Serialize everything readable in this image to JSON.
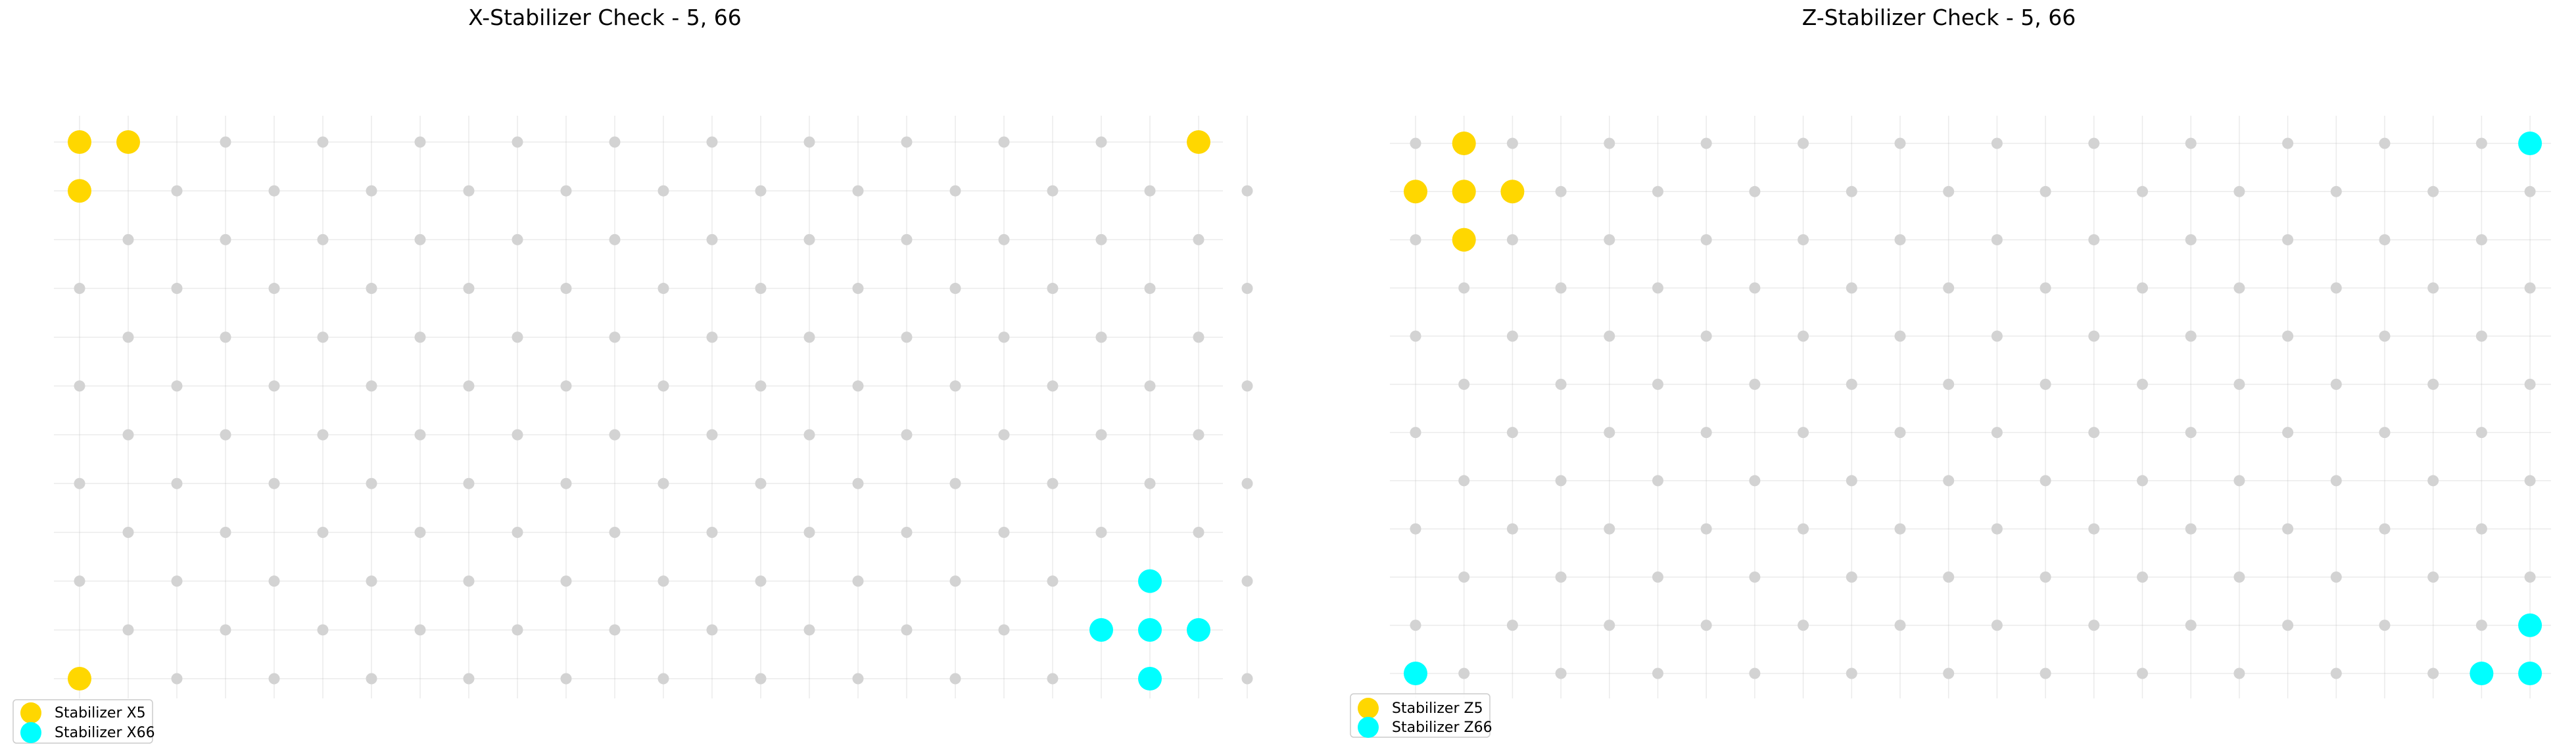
{
  "chart_data": [
    {
      "type": "scatter",
      "title": "X-Stabilizer Check - 5, 66",
      "xlabel": "",
      "ylabel": "",
      "grid": true,
      "axes_visible": false,
      "lattice": {
        "cols": [
          0,
          24
        ],
        "rows": [
          0,
          11
        ],
        "rule": "checkerboard: qubit sites where (x + y) is even",
        "color": "#d3d3d3"
      },
      "series": [
        {
          "name": "Stabilizer X5",
          "color": "#ffd700",
          "points": [
            [
              0,
              11
            ],
            [
              1,
              11
            ],
            [
              0,
              10
            ],
            [
              23,
              11
            ],
            [
              0,
              0
            ]
          ]
        },
        {
          "name": "Stabilizer X66",
          "color": "#00ffff",
          "points": [
            [
              22,
              2
            ],
            [
              21,
              1
            ],
            [
              22,
              1
            ],
            [
              23,
              1
            ],
            [
              22,
              0
            ]
          ]
        }
      ],
      "legend": {
        "position": "lower-left",
        "entries": [
          "Stabilizer X5",
          "Stabilizer X66"
        ]
      }
    },
    {
      "type": "scatter",
      "title": "Z-Stabilizer Check - 5, 66",
      "xlabel": "",
      "ylabel": "",
      "grid": true,
      "axes_visible": false,
      "lattice": {
        "cols": [
          0,
          23
        ],
        "rows": [
          0,
          11
        ],
        "rule": "checkerboard: qubit sites where (x + y) is odd",
        "color": "#d3d3d3"
      },
      "series": [
        {
          "name": "Stabilizer Z5",
          "color": "#ffd700",
          "points": [
            [
              1,
              11
            ],
            [
              0,
              10
            ],
            [
              1,
              10
            ],
            [
              2,
              10
            ],
            [
              1,
              9
            ]
          ]
        },
        {
          "name": "Stabilizer Z66",
          "color": "#00ffff",
          "points": [
            [
              23,
              11
            ],
            [
              23,
              1
            ],
            [
              0,
              0
            ],
            [
              22,
              0
            ],
            [
              23,
              0
            ]
          ]
        }
      ],
      "legend": {
        "position": "lower-left",
        "entries": [
          "Stabilizer Z5",
          "Stabilizer Z66"
        ]
      }
    }
  ]
}
